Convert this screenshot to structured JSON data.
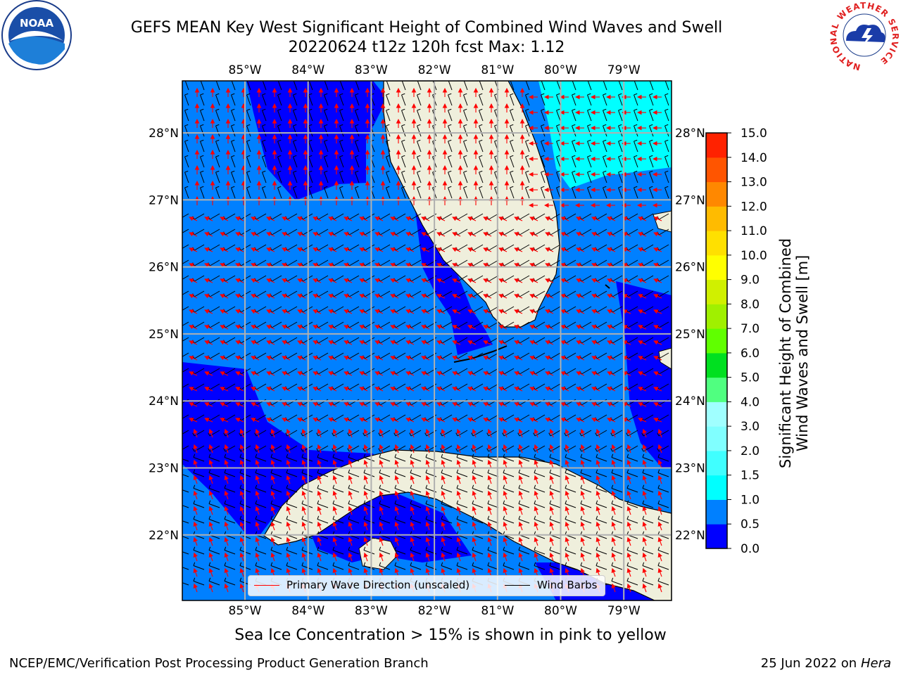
{
  "title": {
    "line1": "GEFS MEAN Key West Significant Height of Combined Wind Waves and Swell",
    "line2": "20220624 t12z 120h fcst   Max: 1.12"
  },
  "axes": {
    "lon_labels": [
      "85°W",
      "84°W",
      "83°W",
      "82°W",
      "81°W",
      "80°W",
      "79°W"
    ],
    "lat_labels": [
      "28°N",
      "27°N",
      "26°N",
      "25°N",
      "24°N",
      "23°N",
      "22°N"
    ]
  },
  "legend": {
    "wave_label": "Primary Wave Direction (unscaled)",
    "wave_color": "#ff0000",
    "wind_label": "Wind Barbs",
    "wind_color": "#000000"
  },
  "colorbar": {
    "label_line1": "Significant Height of Combined",
    "label_line2": "Wind Waves and Swell [m]",
    "tick_labels": [
      "0.0",
      "0.5",
      "1.0",
      "1.5",
      "2.0",
      "3.0",
      "4.0",
      "5.0",
      "6.0",
      "7.0",
      "8.0",
      "9.0",
      "10.0",
      "11.0",
      "12.0",
      "13.0",
      "14.0",
      "15.0"
    ],
    "colors": [
      "#0000ff",
      "#0080ff",
      "#00ffff",
      "#40ffff",
      "#80ffff",
      "#a0ffff",
      "#50ff80",
      "#00e020",
      "#60ff00",
      "#a0f000",
      "#d0f000",
      "#ffff00",
      "#ffe000",
      "#ffbb00",
      "#ff8800",
      "#ff5500",
      "#ff2200",
      "#ff0000"
    ]
  },
  "map_colors": {
    "land": "#efefdc",
    "coast": "#000000",
    "grid": "#b0b0b0"
  },
  "footnote": "Sea Ice Concentration > 15% is shown in pink to yellow",
  "credit_left": "NCEP/EMC/Verification Post Processing Product Generation Branch",
  "credit_right_date": "25 Jun 2022 on",
  "credit_right_host": "Hera",
  "logos": {
    "noaa_text": "NOAA",
    "nws_ring_text": "NATIONAL WEATHER SERVICE"
  }
}
